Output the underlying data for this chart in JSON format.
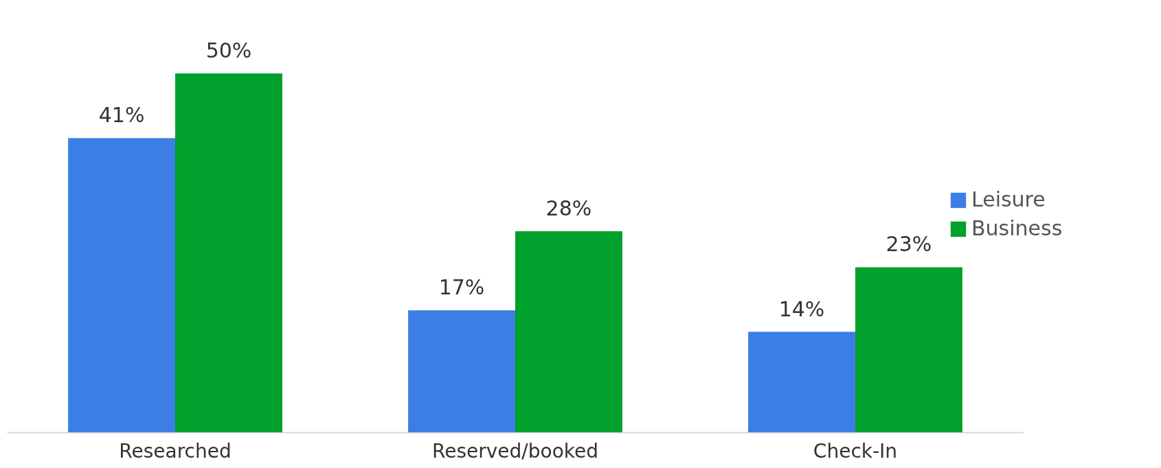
{
  "chart_data": {
    "type": "bar",
    "categories": [
      "Researched",
      "Reserved/booked",
      "Check-In"
    ],
    "series": [
      {
        "name": "Leisure",
        "color": "#3b7ee6",
        "values": [
          41,
          17,
          14
        ],
        "value_labels": [
          "41%",
          "17%",
          "14%"
        ]
      },
      {
        "name": "Business",
        "color": "#00a02c",
        "values": [
          50,
          28,
          23
        ],
        "value_labels": [
          "50%",
          "28%",
          "23%"
        ]
      }
    ],
    "legend": "right",
    "grid": false
  }
}
